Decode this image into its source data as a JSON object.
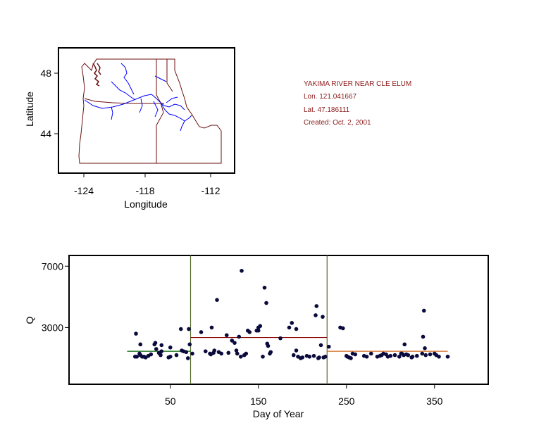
{
  "info": {
    "station": "YAKIMA RIVER NEAR CLE ELUM",
    "lon": "Lon. 121.041667",
    "lat": "Lat. 47.186111",
    "created": "Created:   Oct. 2, 2001"
  },
  "colors": {
    "border": "#6b0f0f",
    "rivers": "#0000ff",
    "dots": "#0a0a3c",
    "segment1": "#006400",
    "segment2": "#8b0000",
    "segment3": "#d2691e",
    "breakline": "#556b2f",
    "info": "#8b1a1a"
  },
  "map": {
    "xlabel": "Longitude",
    "ylabel": "Latitude",
    "xticks": [
      "-124",
      "-118",
      "-112"
    ],
    "yticks": [
      "48",
      "44"
    ]
  },
  "chart_data": {
    "type": "scatter",
    "xlabel": "Day of Year",
    "ylabel": "Q",
    "xlim": [
      -65,
      411
    ],
    "ylim": [
      -700,
      7700
    ],
    "xticks": [
      50,
      150,
      250,
      350
    ],
    "ytick_labels": [
      "7000",
      "3000"
    ],
    "yticks": [
      7000,
      3000
    ],
    "breakpoints": [
      73,
      228
    ],
    "segments": [
      {
        "x": [
          1,
          73
        ],
        "y": 1450
      },
      {
        "x": [
          73,
          228
        ],
        "y": 2350
      },
      {
        "x": [
          228,
          365
        ],
        "y": 1450
      }
    ],
    "points": [
      [
        11,
        2600
      ],
      [
        10,
        1100
      ],
      [
        12,
        1100
      ],
      [
        15,
        1300
      ],
      [
        16,
        1200
      ],
      [
        18,
        1100
      ],
      [
        20,
        1100
      ],
      [
        22,
        1050
      ],
      [
        16,
        1900
      ],
      [
        25,
        1150
      ],
      [
        28,
        1250
      ],
      [
        32,
        1900
      ],
      [
        33,
        2000
      ],
      [
        34,
        1600
      ],
      [
        37,
        1350
      ],
      [
        38,
        1300
      ],
      [
        40,
        1450
      ],
      [
        39,
        1200
      ],
      [
        40,
        1850
      ],
      [
        48,
        1050
      ],
      [
        50,
        1100
      ],
      [
        50,
        1700
      ],
      [
        57,
        1200
      ],
      [
        62,
        2900
      ],
      [
        63,
        1500
      ],
      [
        65,
        1450
      ],
      [
        68,
        1400
      ],
      [
        70,
        1000
      ],
      [
        72,
        1900
      ],
      [
        71,
        2900
      ],
      [
        75,
        1300
      ],
      [
        85,
        2700
      ],
      [
        90,
        1450
      ],
      [
        95,
        1300
      ],
      [
        96,
        1250
      ],
      [
        97,
        3000
      ],
      [
        99,
        1350
      ],
      [
        100,
        1500
      ],
      [
        105,
        1400
      ],
      [
        103,
        4800
      ],
      [
        108,
        1300
      ],
      [
        114,
        2500
      ],
      [
        116,
        1350
      ],
      [
        120,
        2150
      ],
      [
        123,
        2000
      ],
      [
        125,
        1500
      ],
      [
        126,
        1300
      ],
      [
        128,
        2400
      ],
      [
        130,
        1100
      ],
      [
        131,
        6700
      ],
      [
        134,
        1200
      ],
      [
        136,
        1300
      ],
      [
        138,
        2800
      ],
      [
        140,
        2700
      ],
      [
        148,
        2800
      ],
      [
        150,
        3000
      ],
      [
        150,
        2800
      ],
      [
        152,
        3100
      ],
      [
        155,
        1100
      ],
      [
        157,
        5600
      ],
      [
        159,
        4600
      ],
      [
        160,
        1950
      ],
      [
        161,
        1800
      ],
      [
        163,
        1300
      ],
      [
        164,
        1400
      ],
      [
        175,
        2300
      ],
      [
        185,
        3000
      ],
      [
        188,
        3300
      ],
      [
        190,
        1200
      ],
      [
        193,
        1500
      ],
      [
        193,
        2900
      ],
      [
        195,
        1100
      ],
      [
        198,
        1000
      ],
      [
        200,
        1050
      ],
      [
        205,
        1150
      ],
      [
        208,
        1100
      ],
      [
        213,
        1150
      ],
      [
        215,
        3800
      ],
      [
        216,
        4400
      ],
      [
        218,
        1000
      ],
      [
        219,
        1050
      ],
      [
        221,
        1850
      ],
      [
        223,
        3700
      ],
      [
        224,
        1050
      ],
      [
        226,
        1100
      ],
      [
        230,
        1750
      ],
      [
        243,
        3000
      ],
      [
        246,
        2950
      ],
      [
        250,
        1150
      ],
      [
        251,
        1100
      ],
      [
        253,
        1050
      ],
      [
        255,
        1000
      ],
      [
        257,
        1300
      ],
      [
        260,
        1250
      ],
      [
        270,
        1150
      ],
      [
        273,
        1100
      ],
      [
        278,
        1300
      ],
      [
        285,
        1100
      ],
      [
        288,
        1150
      ],
      [
        290,
        1200
      ],
      [
        292,
        1300
      ],
      [
        295,
        1250
      ],
      [
        297,
        1100
      ],
      [
        300,
        1150
      ],
      [
        305,
        1200
      ],
      [
        310,
        1100
      ],
      [
        312,
        1300
      ],
      [
        313,
        1300
      ],
      [
        315,
        1200
      ],
      [
        318,
        1250
      ],
      [
        316,
        1900
      ],
      [
        320,
        1200
      ],
      [
        324,
        1050
      ],
      [
        325,
        1100
      ],
      [
        330,
        1150
      ],
      [
        336,
        1300
      ],
      [
        337,
        2400
      ],
      [
        338,
        4100
      ],
      [
        339,
        1650
      ],
      [
        340,
        1200
      ],
      [
        345,
        1250
      ],
      [
        350,
        1300
      ],
      [
        352,
        1200
      ],
      [
        355,
        1100
      ],
      [
        365,
        1100
      ]
    ]
  }
}
